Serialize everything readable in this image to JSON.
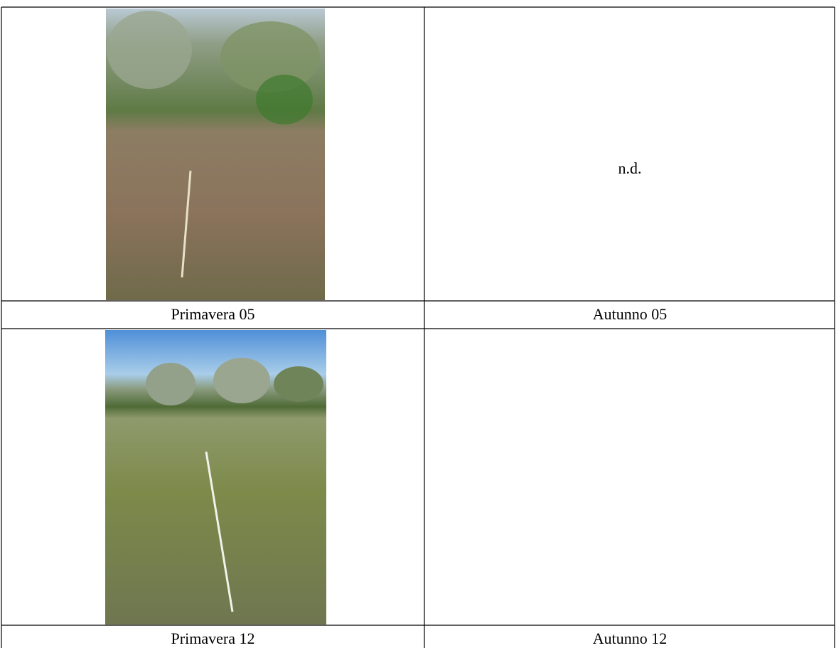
{
  "table": {
    "note": "n.d.",
    "captions": [
      [
        "Primavera 05",
        "Autunno 05"
      ],
      [
        "Primavera 12",
        "Autunno 12"
      ]
    ]
  }
}
